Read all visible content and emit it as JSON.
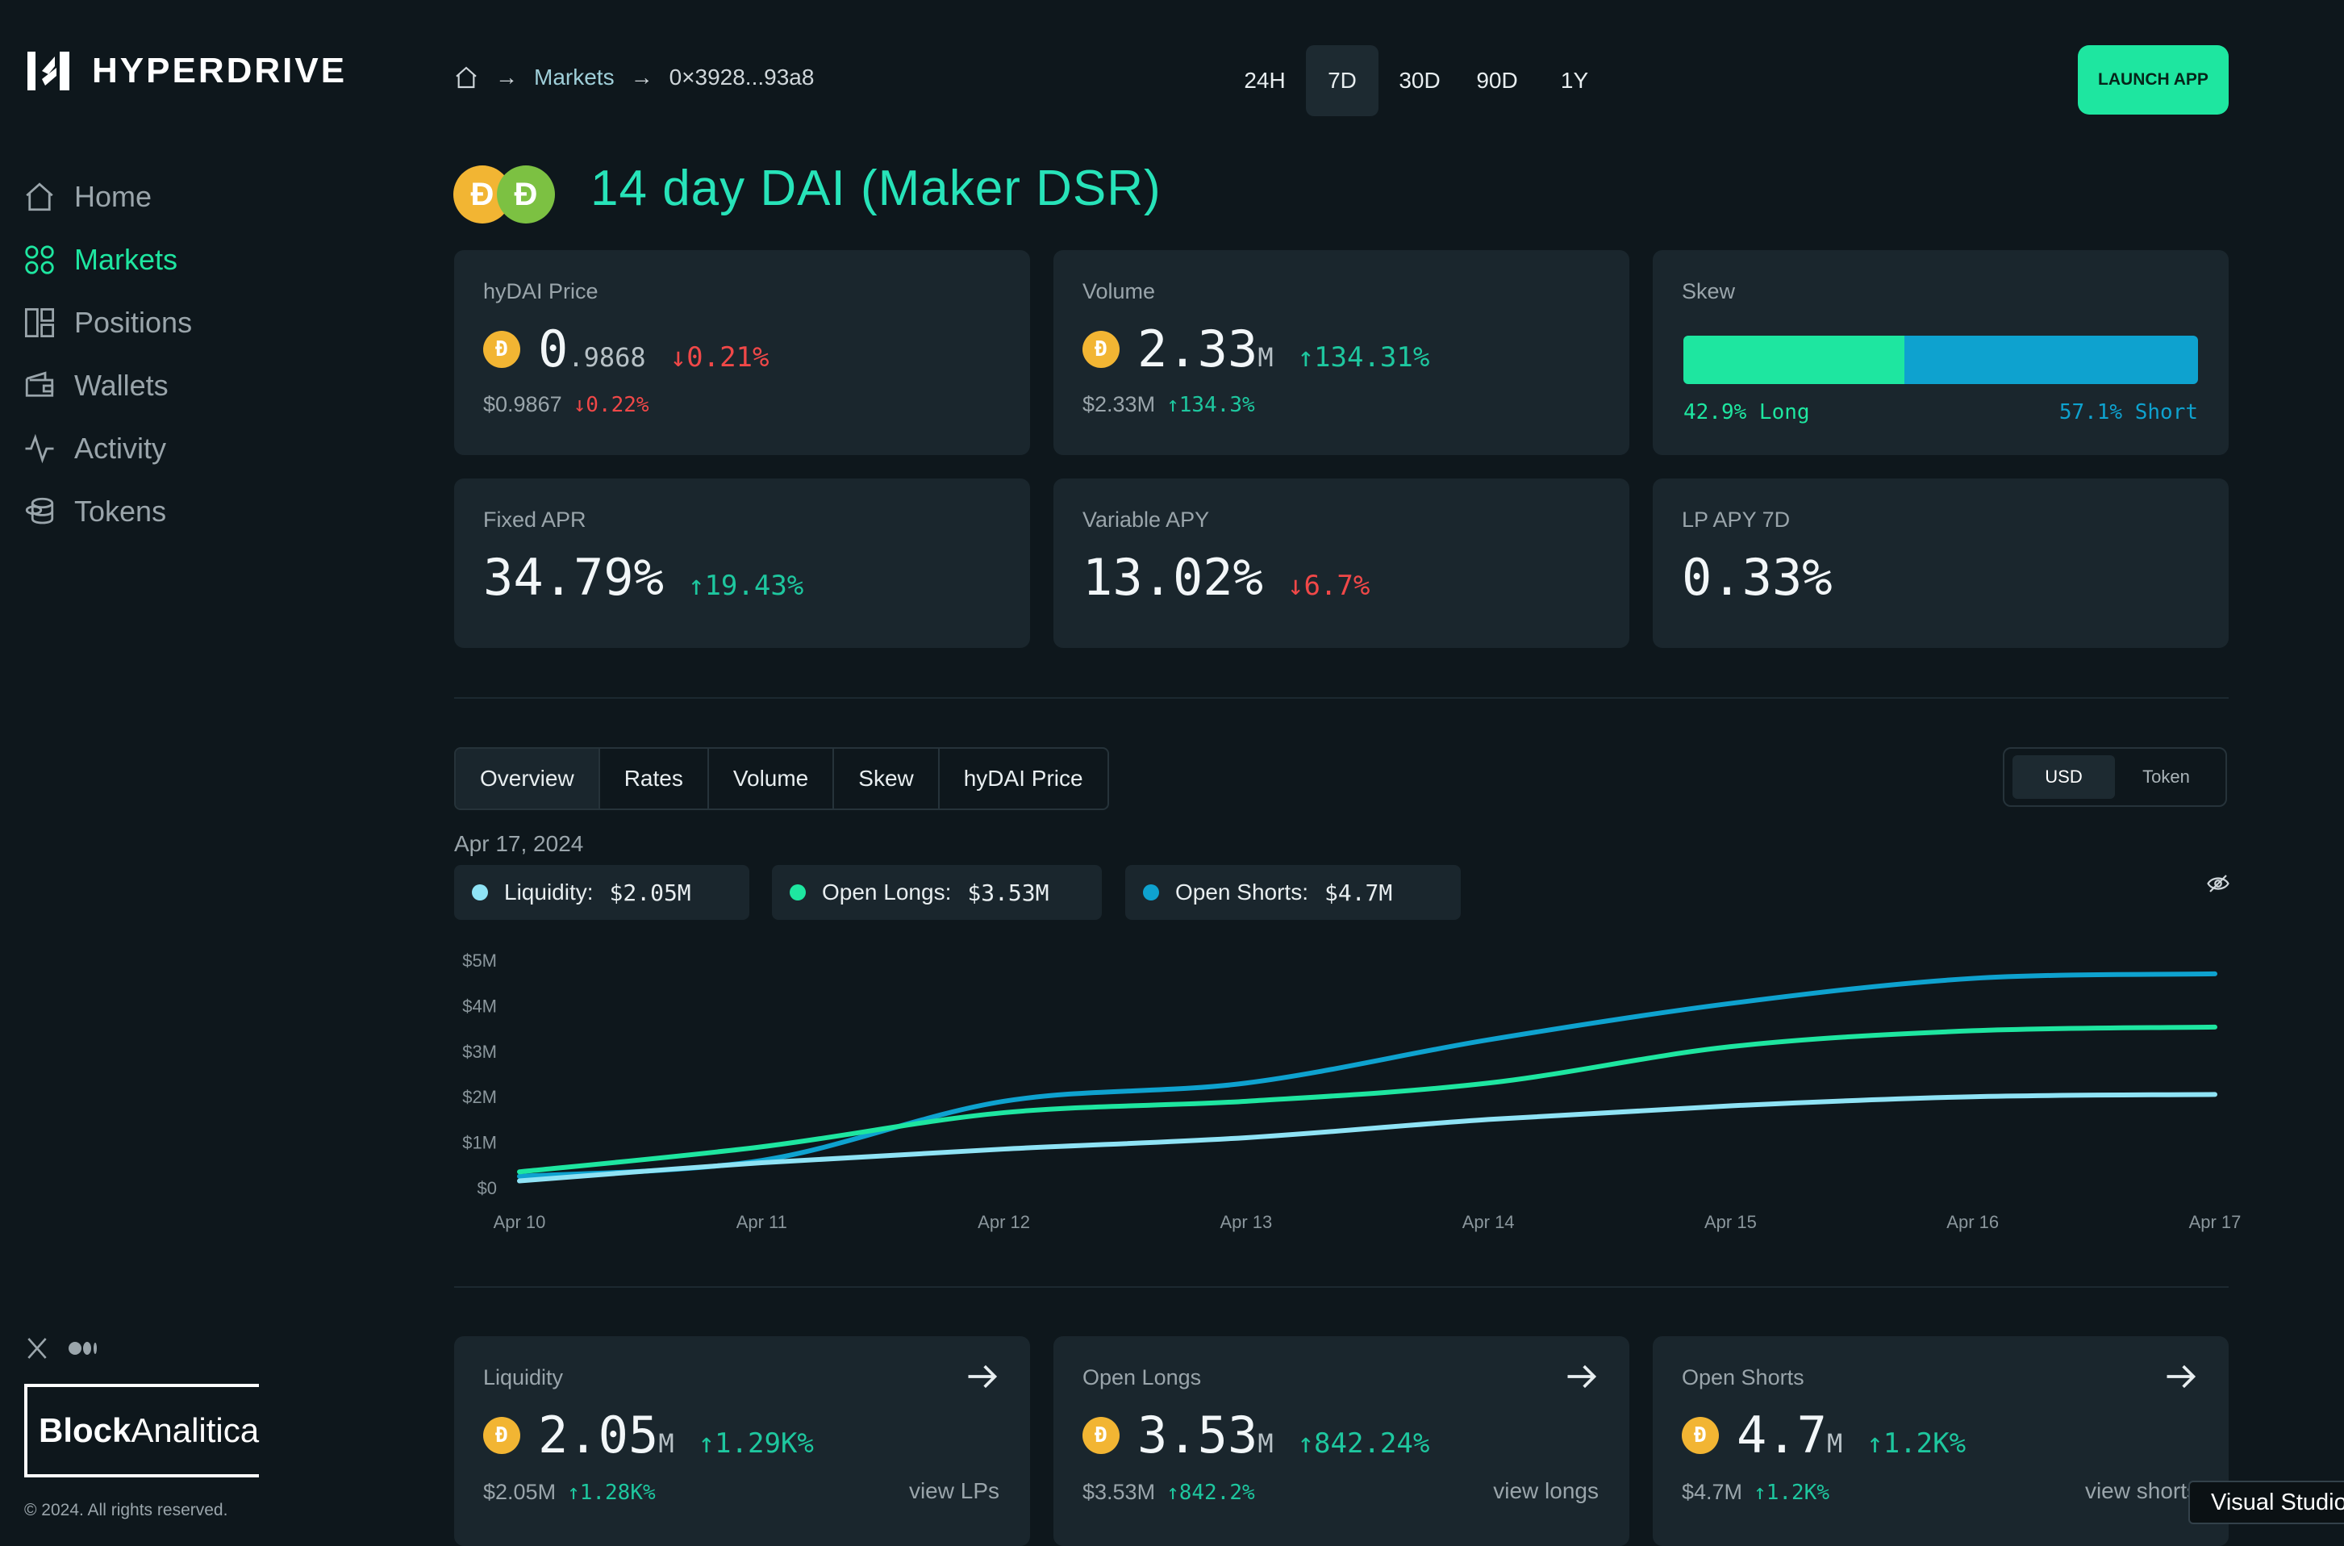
{
  "brand": {
    "name": "HYPERDRIVE"
  },
  "sidebar": {
    "items": [
      {
        "label": "Home",
        "icon": "home-icon",
        "active": false
      },
      {
        "label": "Markets",
        "icon": "markets-icon",
        "active": true
      },
      {
        "label": "Positions",
        "icon": "positions-icon",
        "active": false
      },
      {
        "label": "Wallets",
        "icon": "wallet-icon",
        "active": false
      },
      {
        "label": "Activity",
        "icon": "activity-icon",
        "active": false
      },
      {
        "label": "Tokens",
        "icon": "tokens-icon",
        "active": false
      }
    ],
    "partner": {
      "bold": "Block",
      "light": "Analitica"
    },
    "copyright": "© 2024. All rights reserved."
  },
  "header": {
    "breadcrumb": {
      "markets": "Markets",
      "address": "0×3928...93a8"
    },
    "ranges": [
      "24H",
      "7D",
      "30D",
      "90D",
      "1Y"
    ],
    "active_range": "7D",
    "launch_label": "LAUNCH APP"
  },
  "market": {
    "title": "14 day DAI (Maker DSR)"
  },
  "stats": {
    "price": {
      "label": "hyDAI Price",
      "int": "0",
      "dec": ".9868",
      "change": "↓0.21%",
      "sub_value": "$0.9867",
      "sub_change": "↓0.22%"
    },
    "volume": {
      "label": "Volume",
      "value": "2.33",
      "unit": "M",
      "change": "↑134.31%",
      "sub_value": "$2.33M",
      "sub_change": "↑134.3%"
    },
    "skew": {
      "label": "Skew",
      "long_pct": 42.9,
      "long_label": "42.9% Long",
      "short_label": "57.1% Short"
    },
    "fixed_apr": {
      "label": "Fixed APR",
      "value": "34.79%",
      "change": "↑19.43%"
    },
    "variable_apy": {
      "label": "Variable APY",
      "value": "13.02%",
      "change": "↓6.7%"
    },
    "lp_apy": {
      "label": "LP APY 7D",
      "value": "0.33%"
    }
  },
  "chart_tabs": [
    "Overview",
    "Rates",
    "Volume",
    "Skew",
    "hyDAI Price"
  ],
  "active_tab": "Overview",
  "units": [
    "USD",
    "Token"
  ],
  "active_unit": "USD",
  "chart_date": "Apr 17, 2024",
  "legend": [
    {
      "label": "Liquidity:",
      "value": "$2.05M"
    },
    {
      "label": "Open Longs:",
      "value": "$3.53M"
    },
    {
      "label": "Open Shorts:",
      "value": "$4.7M"
    }
  ],
  "chart_data": {
    "type": "line",
    "title": "",
    "xlabel": "",
    "ylabel": "",
    "x": [
      "Apr 10",
      "Apr 11",
      "Apr 12",
      "Apr 13",
      "Apr 14",
      "Apr 15",
      "Apr 16",
      "Apr 17"
    ],
    "yticks": [
      "$0",
      "$1M",
      "$2M",
      "$3M",
      "$4M",
      "$5M"
    ],
    "ylim": [
      0,
      5
    ],
    "series": [
      {
        "name": "Liquidity",
        "color": "#8fe3f5",
        "values": [
          0.15,
          0.55,
          0.85,
          1.1,
          1.5,
          1.8,
          2.0,
          2.05
        ]
      },
      {
        "name": "Open Longs",
        "color": "#1ee6a0",
        "values": [
          0.35,
          0.9,
          1.65,
          1.9,
          2.3,
          3.1,
          3.45,
          3.53
        ]
      },
      {
        "name": "Open Shorts",
        "color": "#0ea2cf",
        "values": [
          0.25,
          0.6,
          1.9,
          2.3,
          3.25,
          4.05,
          4.6,
          4.7
        ]
      }
    ]
  },
  "bottom": [
    {
      "label": "Liquidity",
      "value": "2.05",
      "unit": "M",
      "change": "↑1.29K%",
      "sub_value": "$2.05M",
      "sub_change": "↑1.28K%",
      "link": "view LPs"
    },
    {
      "label": "Open Longs",
      "value": "3.53",
      "unit": "M",
      "change": "↑842.24%",
      "sub_value": "$3.53M",
      "sub_change": "↑842.2%",
      "link": "view longs"
    },
    {
      "label": "Open Shorts",
      "value": "4.7",
      "unit": "M",
      "change": "↑1.2K%",
      "sub_value": "$4.7M",
      "sub_change": "↑1.2K%",
      "link": "view shorts"
    }
  ],
  "taskbar_tooltip": "Visual Studio",
  "colors": {
    "accent": "#1ee6a0",
    "bg": "#0e171c",
    "card": "#1a262d",
    "up": "#1ec79f",
    "down": "#f04848",
    "short": "#0ea2cf"
  }
}
